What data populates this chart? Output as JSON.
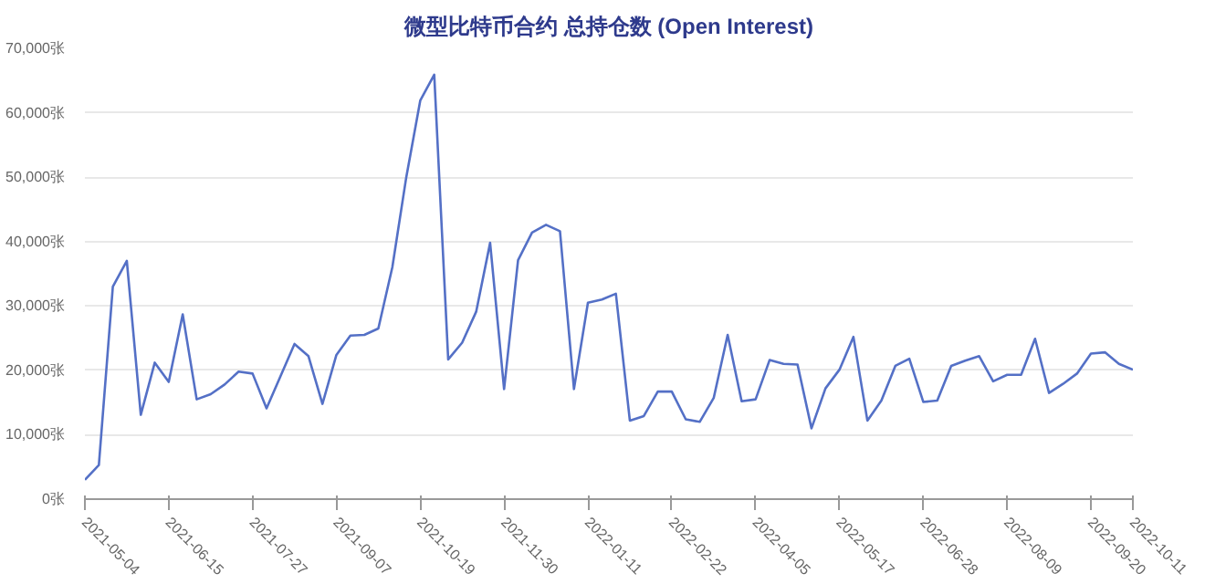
{
  "chart_data": {
    "type": "line",
    "title": "微型比特币合约 总持仓数 (Open Interest)",
    "x": [
      "2021-05-04",
      "2021-05-11",
      "2021-05-18",
      "2021-05-25",
      "2021-06-01",
      "2021-06-08",
      "2021-06-15",
      "2021-06-22",
      "2021-06-29",
      "2021-07-06",
      "2021-07-13",
      "2021-07-20",
      "2021-07-27",
      "2021-08-03",
      "2021-08-10",
      "2021-08-17",
      "2021-08-24",
      "2021-08-31",
      "2021-09-07",
      "2021-09-14",
      "2021-09-21",
      "2021-09-28",
      "2021-10-05",
      "2021-10-12",
      "2021-10-19",
      "2021-10-26",
      "2021-11-02",
      "2021-11-09",
      "2021-11-16",
      "2021-11-23",
      "2021-11-30",
      "2021-12-07",
      "2021-12-14",
      "2021-12-21",
      "2021-12-28",
      "2022-01-04",
      "2022-01-11",
      "2022-01-18",
      "2022-01-25",
      "2022-02-01",
      "2022-02-08",
      "2022-02-15",
      "2022-02-22",
      "2022-03-01",
      "2022-03-08",
      "2022-03-15",
      "2022-03-22",
      "2022-03-29",
      "2022-04-05",
      "2022-04-12",
      "2022-04-19",
      "2022-04-26",
      "2022-05-03",
      "2022-05-10",
      "2022-05-17",
      "2022-05-24",
      "2022-05-31",
      "2022-06-07",
      "2022-06-14",
      "2022-06-21",
      "2022-06-28",
      "2022-07-05",
      "2022-07-12",
      "2022-07-19",
      "2022-07-26",
      "2022-08-02",
      "2022-08-09",
      "2022-08-16",
      "2022-08-23",
      "2022-08-30",
      "2022-09-06",
      "2022-09-13",
      "2022-09-20",
      "2022-09-27",
      "2022-10-04",
      "2022-10-11"
    ],
    "series": [
      {
        "color": "#5470c6",
        "values": [
          3000,
          5300,
          33000,
          37000,
          13100,
          21200,
          18200,
          28700,
          15500,
          16300,
          17800,
          19800,
          19500,
          14100,
          19100,
          24100,
          22200,
          14800,
          22400,
          25400,
          25500,
          26500,
          36000,
          50000,
          61900,
          65900,
          21700,
          24300,
          29100,
          39800,
          17100,
          37100,
          41400,
          42600,
          41600,
          17100,
          30500,
          31000,
          31900,
          12200,
          12900,
          16700,
          16700,
          12400,
          12000,
          15700,
          25500,
          15200,
          15500,
          21600,
          21000,
          20900,
          11000,
          17200,
          20100,
          25200,
          12200,
          15300,
          20700,
          21800,
          15100,
          15300,
          20700,
          21500,
          22200,
          18300,
          19300,
          19300,
          24900,
          16500,
          17900,
          19500,
          22600,
          22800,
          21000,
          20100
        ]
      }
    ],
    "xlim": [
      "2021-05-04",
      "2022-10-11"
    ],
    "xticks": [
      "2021-05-04",
      "2021-06-15",
      "2021-07-27",
      "2021-09-07",
      "2021-10-19",
      "2021-11-30",
      "2022-01-11",
      "2022-02-22",
      "2022-04-05",
      "2022-05-17",
      "2022-06-28",
      "2022-08-09",
      "2022-09-20",
      "2022-10-11"
    ],
    "ylim": [
      0,
      70000
    ],
    "yticks": [
      {
        "value": 0,
        "label": "0张"
      },
      {
        "value": 10000,
        "label": "10,000张"
      },
      {
        "value": 20000,
        "label": "20,000张"
      },
      {
        "value": 30000,
        "label": "30,000张"
      },
      {
        "value": 40000,
        "label": "40,000张"
      },
      {
        "value": 50000,
        "label": "50,000张"
      },
      {
        "value": 60000,
        "label": "60,000张"
      },
      {
        "value": 70000,
        "label": "70,000张"
      }
    ],
    "grid": "y",
    "line_style": "solid"
  }
}
